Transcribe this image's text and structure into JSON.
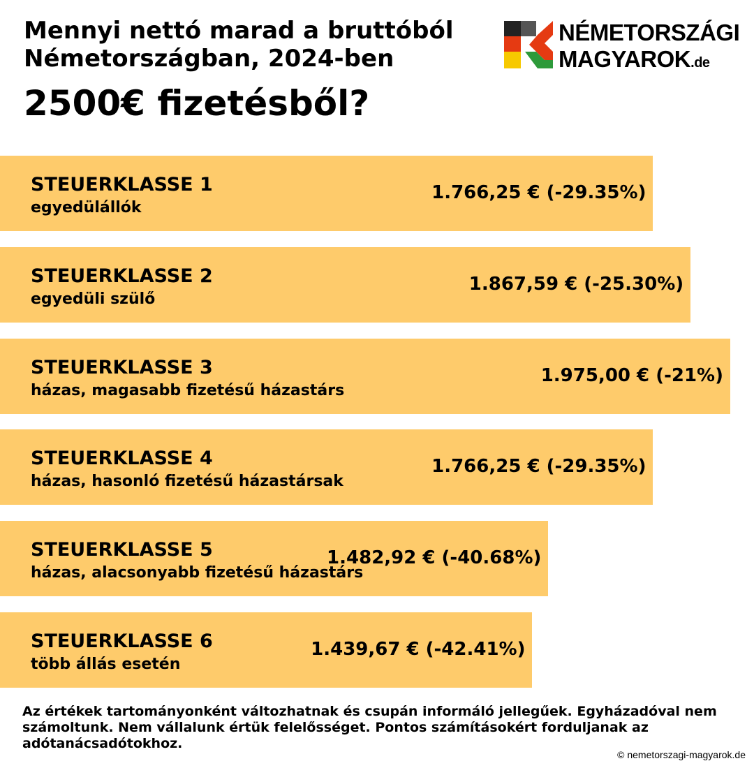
{
  "chart_data": {
    "type": "bar",
    "orientation": "horizontal",
    "title": [
      "Mennyi nettó marad a bruttóból",
      "Németországban, 2024-ben"
    ],
    "subtitle": "2500€ fizetésből?",
    "categories": [
      "STEUERKLASSE 1",
      "STEUERKLASSE 2",
      "STEUERKLASSE 3",
      "STEUERKLASSE 4",
      "STEUERKLASSE 5",
      "STEUERKLASSE 6"
    ],
    "category_notes": [
      "egyedülállók",
      "egyedüli szülő",
      "házas, magasabb fizetésű házastárs",
      "házas, hasonló fizetésű házastársak",
      "házas, alacsonyabb fizetésű házastárs",
      "több állás esetén"
    ],
    "values": [
      1766.25,
      1867.59,
      1975.0,
      1766.25,
      1482.92,
      1439.67
    ],
    "value_labels": [
      "1.766,25 € (-29.35%)",
      "1.867,59 € (-25.30%)",
      "1.975,00 € (-21%)",
      "1.766,25 € (-29.35%)",
      "1.482,92 € (-40.68%)",
      "1.439,67 € (-42.41%)"
    ],
    "color": "#fecb6b"
  },
  "logo": {
    "line1": "NÉMETORSZÁGI",
    "line2": "MAGYAROK",
    "suffix": ".de"
  },
  "footnote": "Az értékek tartományonként változhatnak és csupán informáló jellegűek. Egyházadóval nem számoltunk. Nem vállalunk értük felelősséget. Pontos számításokért forduljanak az adótanácsadótokhoz.",
  "credit": "© nemetorszagi-magyarok.de"
}
